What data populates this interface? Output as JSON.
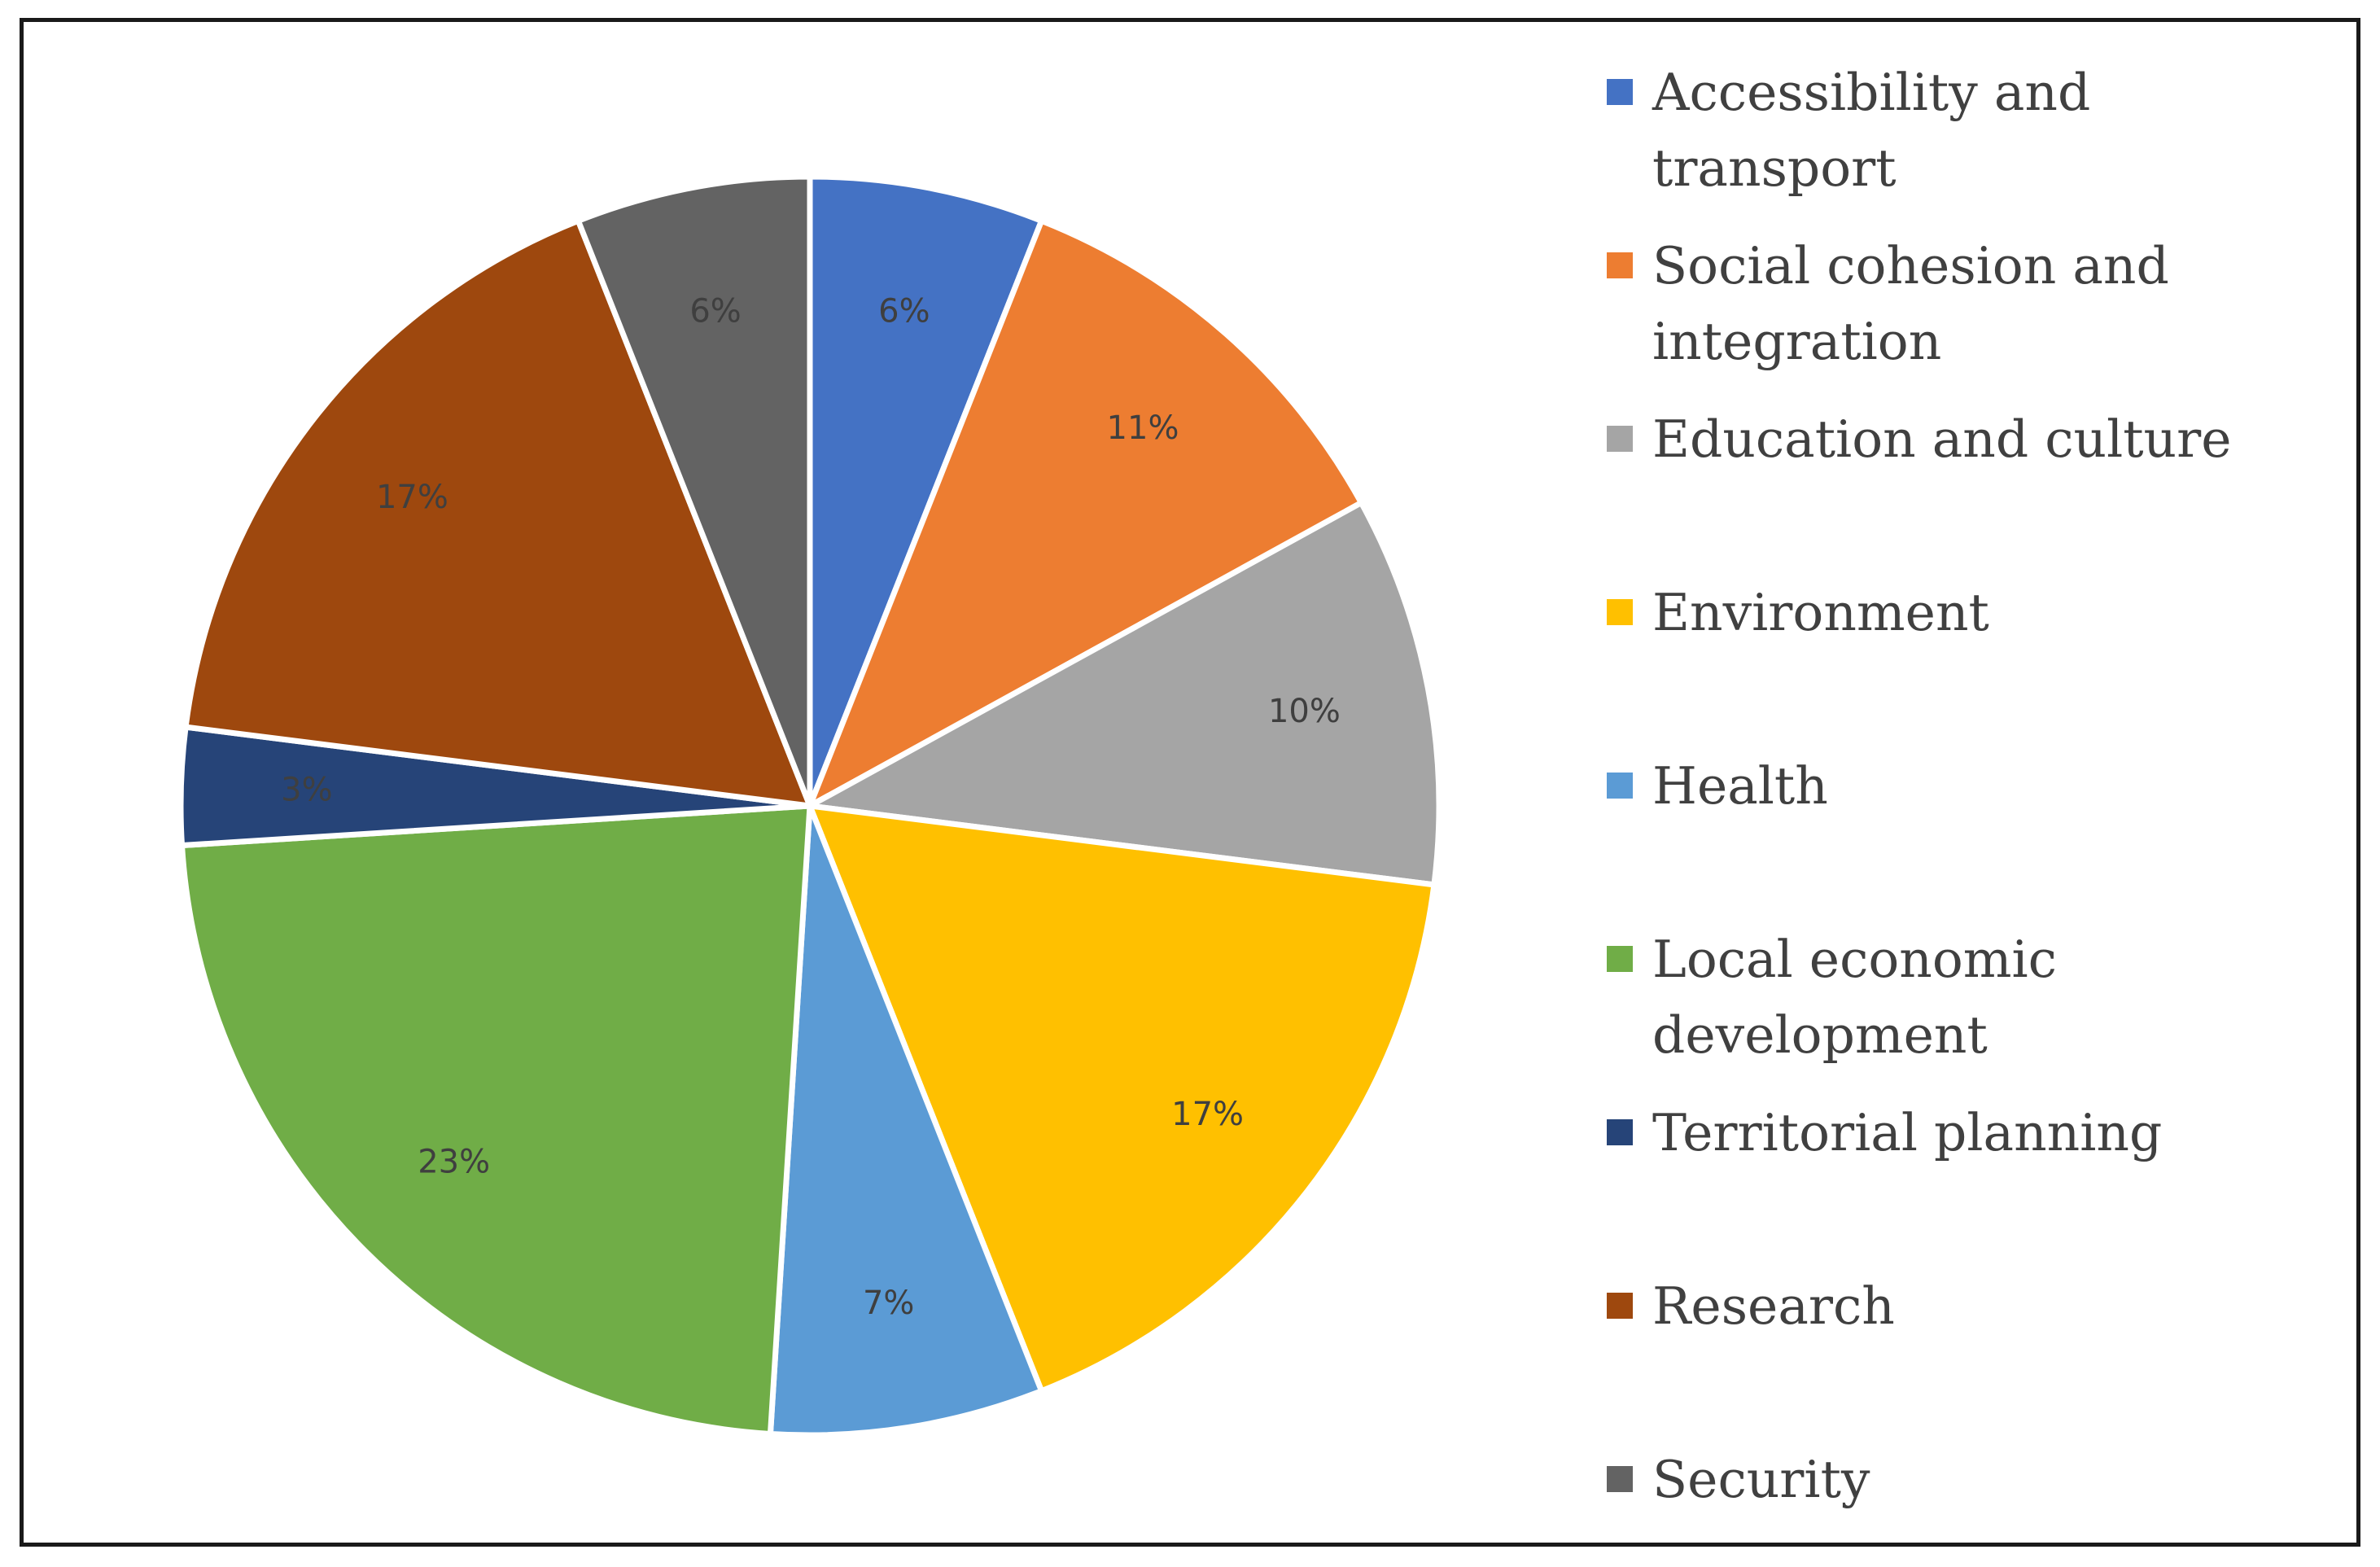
{
  "chart_data": {
    "type": "pie",
    "title": "",
    "slices": [
      {
        "name": "Accessibility and transport",
        "value": 6,
        "label": "6%",
        "color": "#4472C4"
      },
      {
        "name": "Social cohesion and integration",
        "value": 11,
        "label": "11%",
        "color": "#ED7D31"
      },
      {
        "name": "Education and culture",
        "value": 10,
        "label": "10%",
        "color": "#A5A5A5"
      },
      {
        "name": "Environment",
        "value": 17,
        "label": "17%",
        "color": "#FFC000"
      },
      {
        "name": "Health",
        "value": 7,
        "label": "7%",
        "color": "#5B9BD5"
      },
      {
        "name": "Local economic development",
        "value": 23,
        "label": "23%",
        "color": "#70AD47"
      },
      {
        "name": "Territorial planning",
        "value": 3,
        "label": "3%",
        "color": "#264478"
      },
      {
        "name": "Research",
        "value": 17,
        "label": "17%",
        "color": "#9E480E"
      },
      {
        "name": "Security",
        "value": 6,
        "label": "6%",
        "color": "#636363"
      }
    ],
    "legend": {
      "placement": "right",
      "items": [
        "Accessibility and transport",
        "Social cohesion and integration",
        "Education and culture",
        "Environment",
        "Health",
        "Local economic development",
        "Territorial planning",
        "Research",
        "Security"
      ]
    }
  }
}
